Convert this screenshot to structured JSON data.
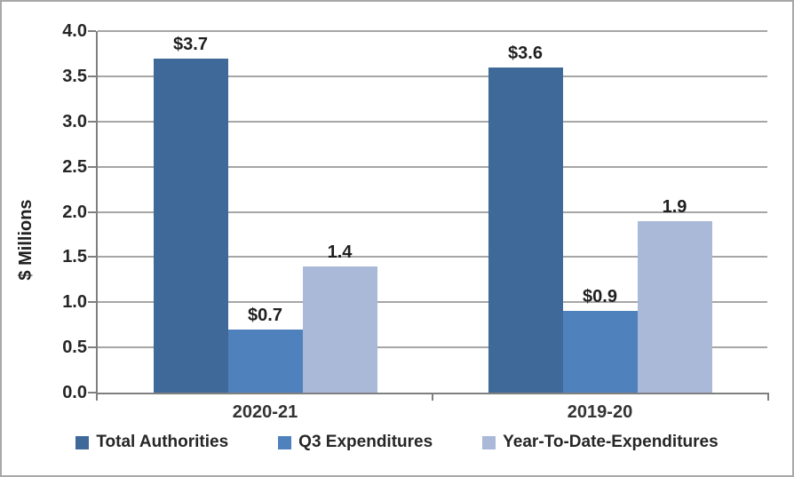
{
  "chart_data": {
    "type": "bar",
    "title": "",
    "ylabel": "$ Millions",
    "xlabel": "",
    "ylim": [
      0,
      4
    ],
    "ytick_step": 0.5,
    "ytick_labels": [
      "0.0",
      "0.5",
      "1.0",
      "1.5",
      "2.0",
      "2.5",
      "3.0",
      "3.5",
      "4.0"
    ],
    "categories": [
      "2020-21",
      "2019-20"
    ],
    "series": [
      {
        "name": "Total Authorities",
        "color": "#3f6999",
        "values": [
          3.7,
          3.6
        ],
        "data_labels": [
          "$3.7",
          "$3.6"
        ]
      },
      {
        "name": "Q3 Expenditures",
        "color": "#4f81bd",
        "values": [
          0.7,
          0.9
        ],
        "data_labels": [
          "$0.7",
          "$0.9"
        ]
      },
      {
        "name": "Year-To-Date-Expenditures",
        "color": "#aab9d8",
        "values": [
          1.4,
          1.9
        ],
        "data_labels": [
          "1.4",
          "1.9"
        ]
      }
    ],
    "legend_position": "bottom",
    "grid": true,
    "colors": {
      "gridline": "#a6a6a6",
      "axis": "#7f7f7f",
      "text": "#262626",
      "frame_border": "#a8a8a8",
      "background": "#ffffff"
    }
  }
}
